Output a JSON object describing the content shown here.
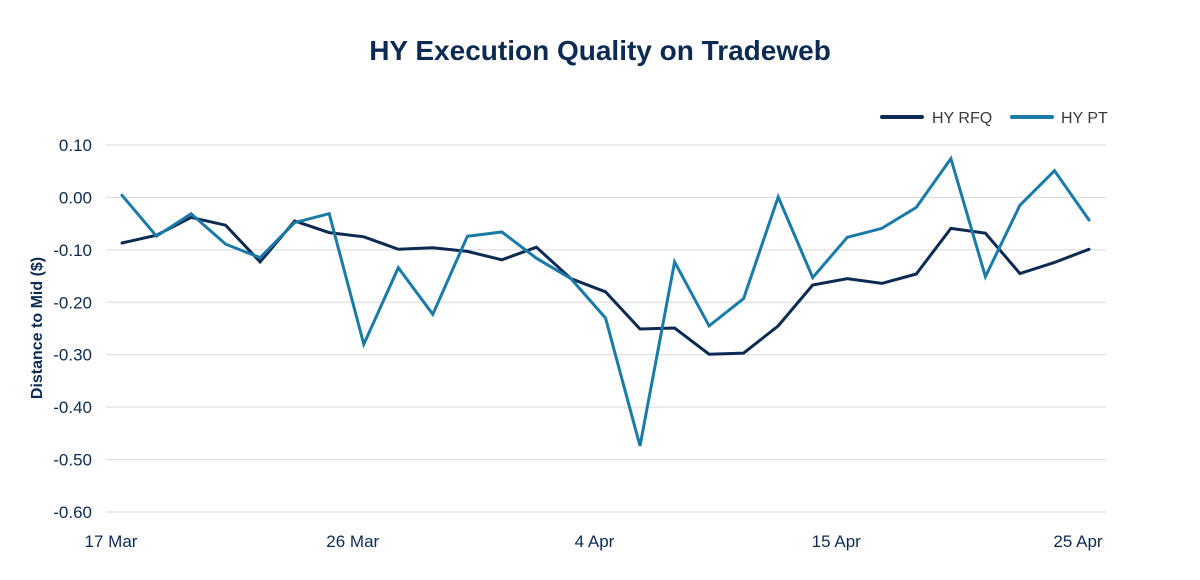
{
  "chart_data": {
    "type": "line",
    "title": "HY Execution Quality on Tradeweb",
    "xlabel": "",
    "ylabel": "Distance to Mid ($)",
    "ylim": [
      -0.6,
      0.1
    ],
    "yticks": [
      "0.10",
      "0.00",
      "-0.10",
      "-0.20",
      "-0.30",
      "-0.40",
      "-0.50",
      "-0.60"
    ],
    "ytick_values": [
      0.1,
      0.0,
      -0.1,
      -0.2,
      -0.3,
      -0.4,
      -0.5,
      -0.6
    ],
    "xticks": [
      "17 Mar",
      "26 Mar",
      "4 Apr",
      "15 Apr",
      "25 Apr"
    ],
    "xtick_indices": [
      0,
      7,
      14,
      21,
      28
    ],
    "x_count": 29,
    "grid": true,
    "legend_position": "top-right",
    "series": [
      {
        "name": "HY RFQ",
        "color": "#0d2b52",
        "values": [
          -0.087,
          -0.072,
          -0.038,
          -0.053,
          -0.123,
          -0.045,
          -0.067,
          -0.075,
          -0.099,
          -0.096,
          -0.103,
          -0.119,
          -0.095,
          -0.155,
          -0.18,
          -0.251,
          -0.249,
          -0.299,
          -0.297,
          -0.245,
          -0.167,
          -0.155,
          -0.164,
          -0.146,
          -0.059,
          -0.068,
          -0.145,
          -0.124,
          -0.099
        ]
      },
      {
        "name": "HY PT",
        "color": "#1a7aa8",
        "values": [
          0.004,
          -0.074,
          -0.031,
          -0.089,
          -0.115,
          -0.048,
          -0.031,
          -0.28,
          -0.134,
          -0.223,
          -0.074,
          -0.066,
          -0.116,
          -0.155,
          -0.23,
          -0.474,
          -0.123,
          -0.245,
          -0.193,
          0.001,
          -0.153,
          -0.076,
          -0.059,
          -0.019,
          0.074,
          -0.151,
          -0.015,
          0.051,
          -0.043
        ]
      }
    ]
  }
}
